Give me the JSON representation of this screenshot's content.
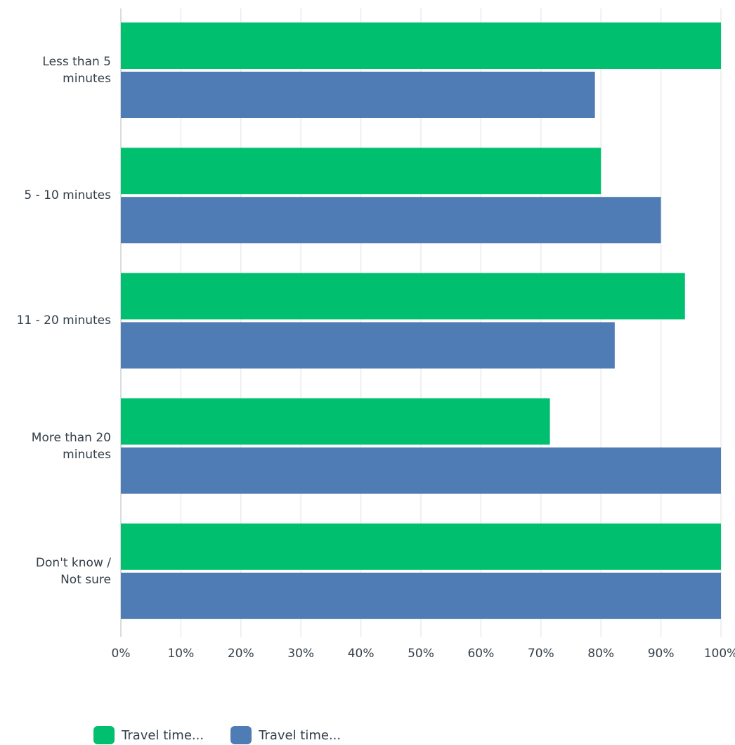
{
  "chart_data": {
    "type": "bar",
    "orientation": "horizontal",
    "categories": [
      [
        "Less than 5",
        "minutes"
      ],
      [
        "5 - 10 minutes"
      ],
      [
        "11 - 20 minutes"
      ],
      [
        "More than 20",
        "minutes"
      ],
      [
        "Don't know /",
        "Not sure"
      ]
    ],
    "series": [
      {
        "name": "Travel time...",
        "color": "#00bf6f",
        "values": [
          100,
          80,
          94,
          71.5,
          100
        ]
      },
      {
        "name": "Travel time...",
        "color": "#507cb6",
        "values": [
          79,
          90,
          82.3,
          100,
          100
        ]
      }
    ],
    "xlim": [
      0,
      100
    ],
    "x_ticks": [
      "0%",
      "10%",
      "20%",
      "30%",
      "40%",
      "50%",
      "60%",
      "70%",
      "80%",
      "90%",
      "100%"
    ],
    "grid": true,
    "legend_position": "bottom-left",
    "title": "",
    "xlabel": "",
    "ylabel": ""
  }
}
